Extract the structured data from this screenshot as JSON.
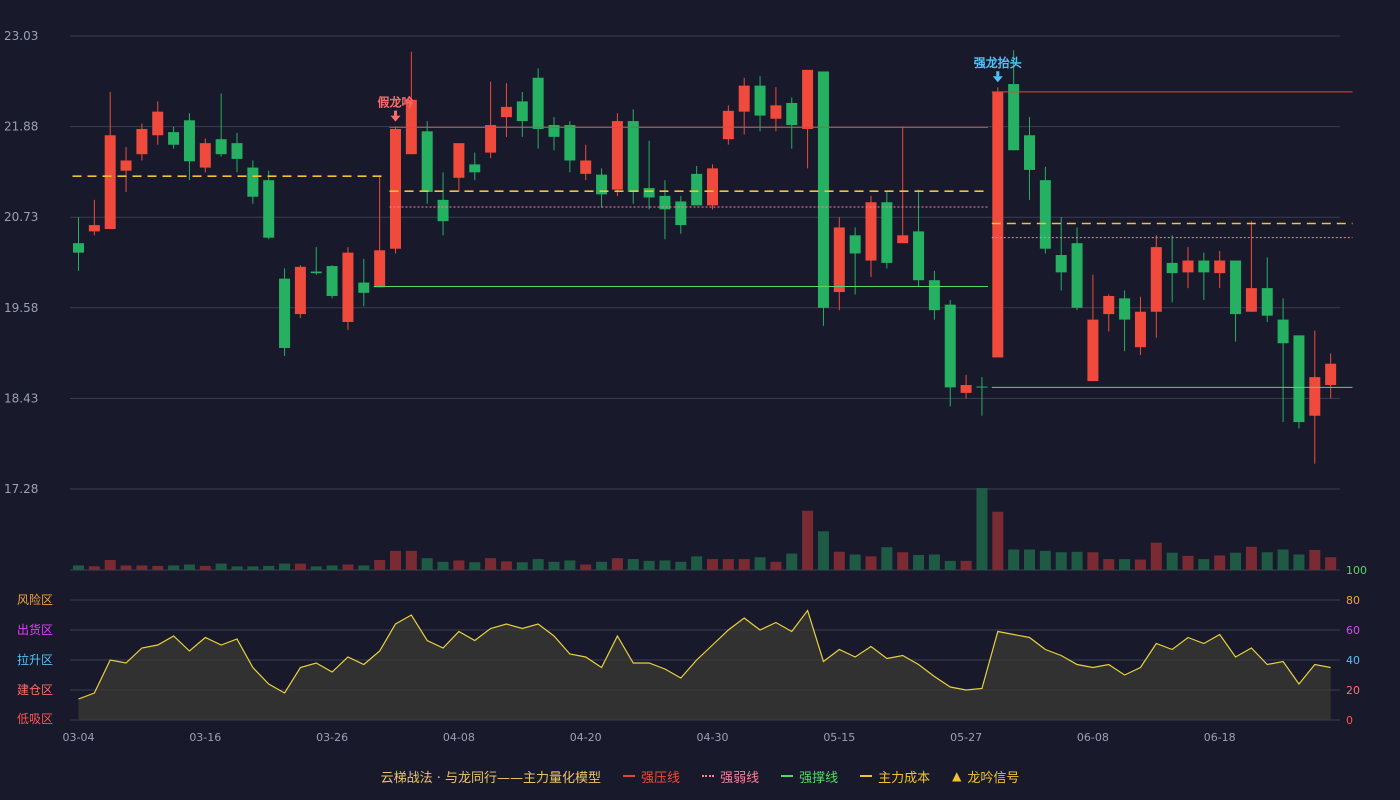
{
  "colors": {
    "background": "#181a2b",
    "up": "#ef4a3c",
    "down": "#25b062",
    "grid": "#3a3d52",
    "axis_text": "#9aa0b4",
    "resist": "#e8443a",
    "weak": "#ff7f9a",
    "support": "#53d769",
    "cost": "#f2c230",
    "osc_line": "#e8d13a",
    "signal_fake": "#ff6b6b",
    "signal_strong": "#4fc3f7"
  },
  "chart_data": [
    {
      "type": "candlestick",
      "name": "price",
      "ylim": [
        17.28,
        23.03
      ],
      "y_ticks": [
        "17.28",
        "18.43",
        "19.58",
        "20.73",
        "21.88",
        "23.03"
      ],
      "x_ticks": [
        {
          "index": 0,
          "label": "03-04"
        },
        {
          "index": 8,
          "label": "03-16"
        },
        {
          "index": 16,
          "label": "03-26"
        },
        {
          "index": 24,
          "label": "04-08"
        },
        {
          "index": 32,
          "label": "04-20"
        },
        {
          "index": 40,
          "label": "04-30"
        },
        {
          "index": 48,
          "label": "05-15"
        },
        {
          "index": 56,
          "label": "05-27"
        },
        {
          "index": 64,
          "label": "06-08"
        },
        {
          "index": 72,
          "label": "06-18"
        }
      ],
      "ohlc": [
        [
          20.4,
          20.28,
          20.73,
          20.05
        ],
        [
          20.55,
          20.63,
          20.95,
          20.5
        ],
        [
          20.58,
          21.77,
          22.32,
          20.58
        ],
        [
          21.32,
          21.45,
          21.62,
          21.05
        ],
        [
          21.53,
          21.85,
          21.92,
          21.45
        ],
        [
          21.77,
          22.07,
          22.2,
          21.65
        ],
        [
          21.81,
          21.65,
          21.88,
          21.6
        ],
        [
          21.96,
          21.44,
          22.05,
          21.2
        ],
        [
          21.36,
          21.67,
          21.73,
          21.3
        ],
        [
          21.72,
          21.53,
          22.3,
          21.5
        ],
        [
          21.67,
          21.47,
          21.8,
          21.3
        ],
        [
          21.36,
          20.99,
          21.45,
          20.9
        ],
        [
          21.2,
          20.47,
          21.32,
          20.45
        ],
        [
          19.95,
          19.07,
          20.08,
          18.97
        ],
        [
          19.5,
          20.1,
          20.12,
          19.45
        ],
        [
          20.04,
          20.02,
          20.35,
          20.0
        ],
        [
          20.11,
          19.73,
          20.12,
          19.7
        ],
        [
          19.4,
          20.28,
          20.35,
          19.3
        ],
        [
          19.9,
          19.77,
          20.2,
          19.6
        ],
        [
          19.84,
          20.31,
          21.26,
          19.84
        ],
        [
          20.33,
          21.85,
          21.88,
          20.27
        ],
        [
          21.53,
          22.22,
          22.83,
          21.53
        ],
        [
          21.82,
          21.05,
          21.95,
          20.9
        ],
        [
          20.95,
          20.68,
          21.3,
          20.5
        ],
        [
          21.23,
          21.67,
          21.67,
          21.05
        ],
        [
          21.4,
          21.3,
          21.55,
          21.2
        ],
        [
          21.55,
          21.9,
          22.45,
          21.48
        ],
        [
          22.0,
          22.13,
          22.43,
          21.75
        ],
        [
          22.2,
          21.95,
          22.32,
          21.75
        ],
        [
          22.5,
          21.85,
          22.62,
          21.6
        ],
        [
          21.9,
          21.75,
          22.0,
          21.58
        ],
        [
          21.9,
          21.45,
          21.95,
          21.3
        ],
        [
          21.28,
          21.45,
          21.65,
          21.2
        ],
        [
          21.27,
          21.02,
          21.35,
          20.85
        ],
        [
          21.08,
          21.95,
          22.05,
          21.0
        ],
        [
          21.95,
          21.05,
          22.1,
          20.9
        ],
        [
          21.1,
          20.98,
          21.7,
          20.83
        ],
        [
          21.0,
          20.83,
          21.2,
          20.45
        ],
        [
          20.93,
          20.63,
          21.0,
          20.52
        ],
        [
          21.28,
          20.88,
          21.38,
          20.88
        ],
        [
          20.88,
          21.35,
          21.4,
          20.83
        ],
        [
          21.72,
          22.08,
          22.15,
          21.65
        ],
        [
          22.07,
          22.4,
          22.5,
          21.78
        ],
        [
          22.4,
          22.02,
          22.52,
          21.82
        ],
        [
          21.98,
          22.15,
          22.38,
          21.82
        ],
        [
          22.18,
          21.9,
          22.25,
          21.6
        ],
        [
          21.85,
          22.6,
          22.6,
          21.35
        ],
        [
          22.58,
          19.58,
          22.58,
          19.35
        ],
        [
          19.78,
          20.6,
          20.73,
          19.55
        ],
        [
          20.5,
          20.27,
          20.6,
          19.75
        ],
        [
          20.18,
          20.92,
          21.0,
          19.97
        ],
        [
          20.92,
          20.15,
          21.05,
          20.08
        ],
        [
          20.4,
          20.5,
          21.88,
          20.4
        ],
        [
          20.55,
          19.93,
          21.08,
          19.85
        ],
        [
          19.93,
          19.55,
          20.05,
          19.43
        ],
        [
          19.62,
          18.57,
          19.68,
          18.33
        ],
        [
          18.5,
          18.6,
          18.73,
          18.43
        ],
        [
          18.58,
          18.57,
          18.7,
          18.21
        ],
        [
          18.95,
          22.32,
          22.38,
          18.95
        ],
        [
          22.42,
          21.58,
          22.85,
          21.58
        ],
        [
          21.77,
          21.33,
          22.0,
          20.95
        ],
        [
          21.2,
          20.33,
          21.37,
          20.27
        ],
        [
          20.25,
          20.03,
          20.73,
          19.8
        ],
        [
          20.4,
          19.58,
          20.6,
          19.55
        ],
        [
          18.65,
          19.43,
          20.0,
          18.65
        ],
        [
          19.5,
          19.73,
          19.75,
          19.28
        ],
        [
          19.7,
          19.43,
          19.8,
          19.03
        ],
        [
          19.08,
          19.53,
          19.72,
          18.98
        ],
        [
          19.53,
          20.35,
          20.5,
          19.2
        ],
        [
          20.15,
          20.02,
          20.5,
          19.65
        ],
        [
          20.03,
          20.18,
          20.35,
          19.83
        ],
        [
          20.18,
          20.03,
          20.28,
          19.68
        ],
        [
          20.02,
          20.18,
          20.3,
          19.83
        ],
        [
          20.18,
          19.5,
          20.18,
          19.15
        ],
        [
          19.53,
          19.83,
          20.68,
          19.53
        ],
        [
          19.83,
          19.48,
          20.22,
          19.4
        ],
        [
          19.43,
          19.13,
          19.7,
          18.13
        ],
        [
          19.23,
          18.13,
          19.23,
          18.05
        ],
        [
          18.21,
          18.7,
          19.29,
          17.6
        ],
        [
          18.6,
          18.87,
          19.0,
          18.43
        ]
      ],
      "overlays": [
        {
          "name": "强压线",
          "kind": "resist",
          "segments": [
            [
              20,
              57,
              21.87
            ],
            [
              58,
              80,
              22.32
            ]
          ]
        },
        {
          "name": "强弱线",
          "kind": "weak",
          "segments": [
            [
              20,
              57,
              20.86
            ],
            [
              58,
              80,
              20.47
            ]
          ]
        },
        {
          "name": "强撑线",
          "kind": "support",
          "segments": [
            [
              19,
              57,
              19.85
            ],
            [
              58,
              80,
              18.57
            ]
          ]
        },
        {
          "name": "主力成本",
          "kind": "cost",
          "segments": [
            [
              0,
              19,
              21.25
            ],
            [
              20,
              57,
              21.06
            ],
            [
              58,
              80,
              20.65
            ]
          ]
        }
      ],
      "annotations": [
        {
          "index": 20,
          "text": "假龙吟",
          "kind": "fake"
        },
        {
          "index": 58,
          "text": "强龙抬头",
          "kind": "strong"
        }
      ]
    },
    {
      "type": "bar",
      "name": "volume",
      "values": [
        10,
        8,
        22,
        10,
        10,
        9,
        10,
        12,
        9,
        14,
        8,
        8,
        9,
        14,
        14,
        8,
        10,
        12,
        10,
        22,
        42,
        42,
        26,
        18,
        21,
        17,
        26,
        19,
        17,
        24,
        18,
        21,
        12,
        18,
        26,
        24,
        20,
        21,
        18,
        30,
        24,
        24,
        24,
        28,
        18,
        36,
        130,
        85,
        40,
        34,
        30,
        50,
        39,
        33,
        34,
        20,
        20,
        180,
        128,
        45,
        45,
        42,
        39,
        40,
        39,
        24,
        24,
        23,
        60,
        38,
        31,
        24,
        32,
        38,
        51,
        39,
        45,
        34,
        44,
        28
      ]
    },
    {
      "type": "area",
      "name": "oscillator",
      "ylim": [
        0,
        100
      ],
      "y_ticks": [
        "0",
        "20",
        "40",
        "60",
        "80",
        "100"
      ],
      "zones": [
        "风险区",
        "出货区",
        "拉升区",
        "建仓区",
        "低吸区"
      ],
      "values": [
        14,
        18,
        40,
        38,
        48,
        50,
        56,
        46,
        55,
        50,
        54,
        35,
        24,
        18,
        35,
        38,
        32,
        42,
        37,
        46,
        64,
        70,
        53,
        48,
        59,
        53,
        61,
        64,
        61,
        64,
        56,
        44,
        42,
        35,
        56,
        38,
        38,
        34,
        28,
        40,
        50,
        60,
        68,
        60,
        65,
        59,
        73,
        39,
        47,
        42,
        49,
        41,
        43,
        37,
        29,
        22,
        20,
        21,
        59,
        57,
        55,
        47,
        43,
        37,
        35,
        37,
        30,
        35,
        51,
        47,
        55,
        51,
        57,
        42,
        48,
        37,
        39,
        24,
        37,
        35
      ]
    }
  ],
  "legend": {
    "title": "云梯战法 · 与龙同行——主力量化模型",
    "items": [
      {
        "label": "强压线",
        "kind": "resist"
      },
      {
        "label": "强弱线",
        "kind": "weak"
      },
      {
        "label": "强撑线",
        "kind": "support"
      },
      {
        "label": "主力成本",
        "kind": "cost"
      },
      {
        "label": "龙吟信号",
        "kind": "signal"
      }
    ]
  }
}
